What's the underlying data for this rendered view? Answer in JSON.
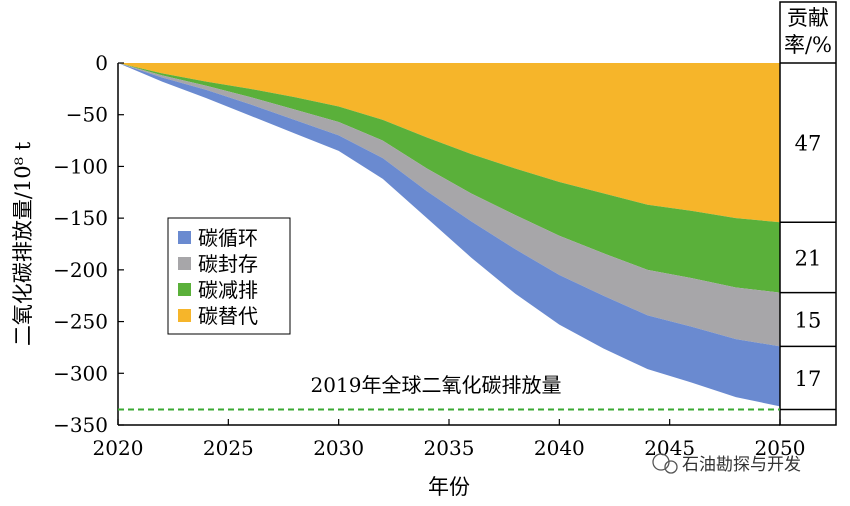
{
  "chart_data": {
    "type": "area",
    "title": "",
    "xlabel": "年份",
    "ylabel": "二氧化碳排放量/10⁸ t",
    "xlim": [
      2020,
      2050
    ],
    "ylim": [
      -350,
      0
    ],
    "x_ticks": [
      "2020",
      "2025",
      "2030",
      "2035",
      "2040",
      "2045",
      "2050"
    ],
    "y_ticks": [
      "0",
      "-50",
      "-100",
      "-150",
      "-200",
      "-250",
      "-300",
      "-350"
    ],
    "x": [
      2020,
      2022,
      2024,
      2026,
      2028,
      2030,
      2032,
      2034,
      2036,
      2038,
      2040,
      2042,
      2044,
      2046,
      2048,
      2050
    ],
    "series": [
      {
        "name": "碳替代",
        "color": "#f6b52a",
        "values": [
          0,
          -10,
          -18,
          -25,
          -33,
          -42,
          -55,
          -72,
          -88,
          -102,
          -115,
          -126,
          -137,
          -143,
          -150,
          -154
        ]
      },
      {
        "name": "碳减排",
        "color": "#5ab03a",
        "values": [
          0,
          -2,
          -4,
          -8,
          -12,
          -15,
          -20,
          -30,
          -38,
          -45,
          -52,
          -58,
          -63,
          -65,
          -67,
          -68
        ]
      },
      {
        "name": "碳封存",
        "color": "#a7a6a9",
        "values": [
          0,
          -2,
          -4,
          -7,
          -10,
          -13,
          -17,
          -22,
          -27,
          -33,
          -38,
          -41,
          -44,
          -47,
          -50,
          -52
        ]
      },
      {
        "name": "碳循环",
        "color": "#6a8ad0",
        "values": [
          0,
          -4,
          -8,
          -11,
          -13,
          -15,
          -20,
          -26,
          -35,
          -43,
          -48,
          -51,
          -52,
          -54,
          -56,
          -58
        ]
      }
    ],
    "legend": {
      "position": "left-middle",
      "order": [
        "碳循环",
        "碳封存",
        "碳减排",
        "碳替代"
      ]
    },
    "reference_line": {
      "value": -335,
      "label": "2019年全球二氧化碳排放量",
      "color": "#3aa832",
      "style": "dashed"
    },
    "contribution_column": {
      "header": "贡献率/%",
      "header_line1": "贡献",
      "header_line2": "率/%",
      "rows": [
        {
          "series": "碳替代",
          "value": "47"
        },
        {
          "series": "碳减排",
          "value": "21"
        },
        {
          "series": "碳封存",
          "value": "15"
        },
        {
          "series": "碳循环",
          "value": "17"
        }
      ]
    },
    "grid": false
  },
  "watermark": {
    "text": "石油勘探与开发",
    "icon": "wechat-icon"
  }
}
